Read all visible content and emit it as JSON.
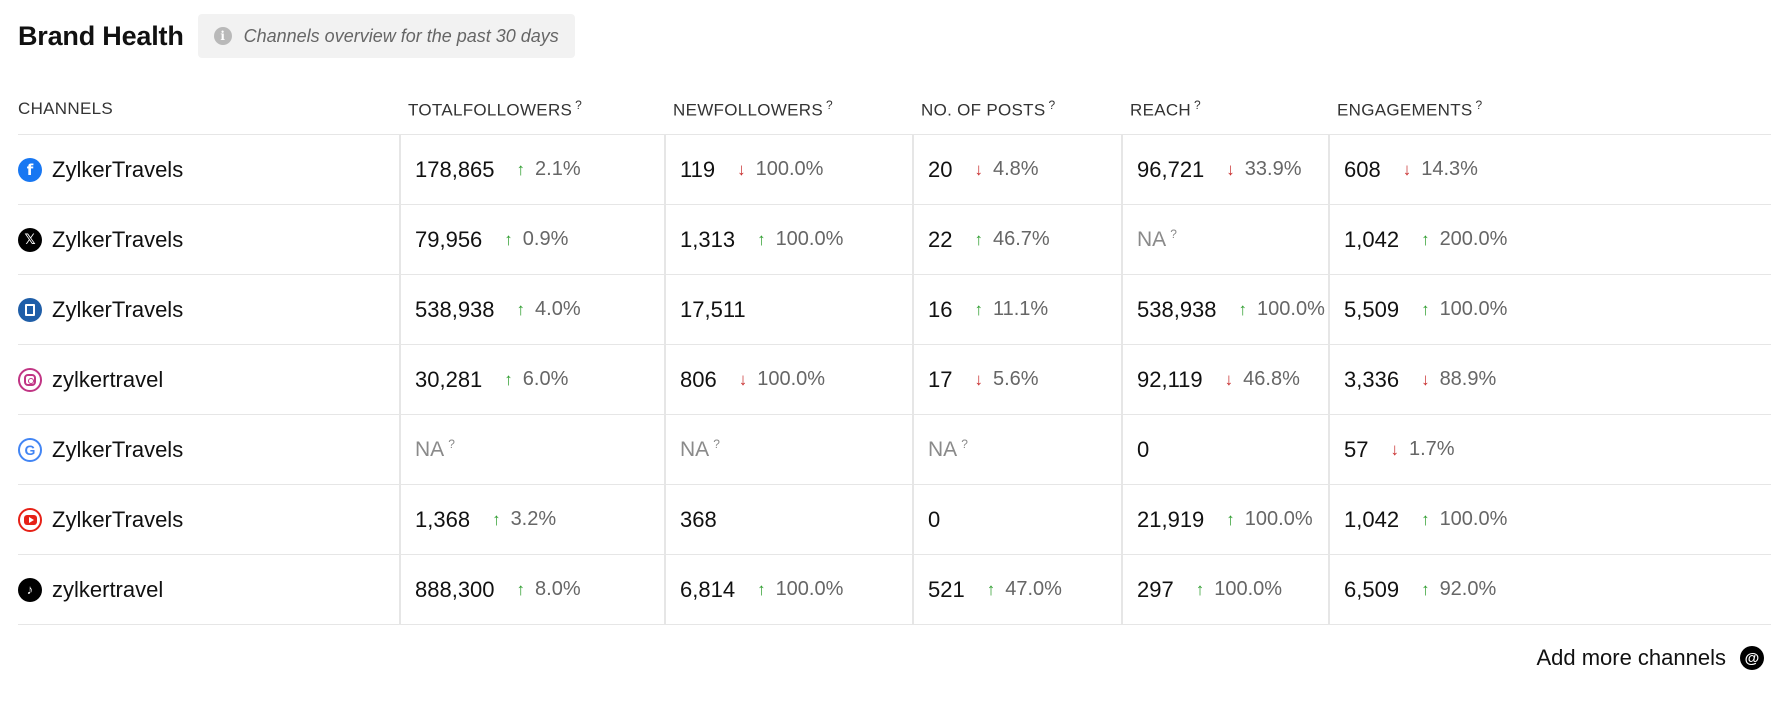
{
  "header": {
    "title": "Brand Health",
    "subtitle": "Channels overview for the past 30 days",
    "info_icon": "i"
  },
  "columns": [
    {
      "label": "CHANNELS",
      "help": ""
    },
    {
      "label": "TOTALFOLLOWERS",
      "help": "?"
    },
    {
      "label": "NEWFOLLOWERS",
      "help": "?"
    },
    {
      "label": "NO. OF POSTS",
      "help": "?"
    },
    {
      "label": "REACH",
      "help": "?"
    },
    {
      "label": "ENGAGEMENTS",
      "help": "?"
    }
  ],
  "rows": [
    {
      "icon": "facebook-icon",
      "glyph": "f",
      "name": "ZylkerTravels",
      "total": {
        "v": "178,865",
        "c": "2.1%",
        "d": "up"
      },
      "new": {
        "v": "119",
        "c": "100.0%",
        "d": "down"
      },
      "posts": {
        "v": "20",
        "c": "4.8%",
        "d": "down"
      },
      "reach": {
        "v": "96,721",
        "c": "33.9%",
        "d": "down"
      },
      "eng": {
        "v": "608",
        "c": "14.3%",
        "d": "down"
      }
    },
    {
      "icon": "x-twitter-icon",
      "glyph": "𝕏",
      "name": "ZylkerTravels",
      "total": {
        "v": "79,956",
        "c": "0.9%",
        "d": "up"
      },
      "new": {
        "v": "1,313",
        "c": "100.0%",
        "d": "up"
      },
      "posts": {
        "v": "22",
        "c": "46.7%",
        "d": "up"
      },
      "reach": {
        "na": "NA",
        "help": "?"
      },
      "eng": {
        "v": "1,042",
        "c": "200.0%",
        "d": "up"
      }
    },
    {
      "icon": "linkedin-page-icon",
      "glyph": "",
      "name": "ZylkerTravels",
      "total": {
        "v": "538,938",
        "c": "4.0%",
        "d": "up"
      },
      "new": {
        "v": "17,511"
      },
      "posts": {
        "v": "16",
        "c": "11.1%",
        "d": "up"
      },
      "reach": {
        "v": "538,938",
        "c": "100.0%",
        "d": "up"
      },
      "eng": {
        "v": "5,509",
        "c": "100.0%",
        "d": "up"
      }
    },
    {
      "icon": "instagram-icon",
      "glyph": "",
      "name": "zylkertravel",
      "total": {
        "v": "30,281",
        "c": "6.0%",
        "d": "up"
      },
      "new": {
        "v": "806",
        "c": "100.0%",
        "d": "down"
      },
      "posts": {
        "v": "17",
        "c": "5.6%",
        "d": "down"
      },
      "reach": {
        "v": "92,119",
        "c": "46.8%",
        "d": "down"
      },
      "eng": {
        "v": "3,336",
        "c": "88.9%",
        "d": "down"
      }
    },
    {
      "icon": "google-business-icon",
      "glyph": "G",
      "name": "ZylkerTravels",
      "total": {
        "na": "NA",
        "help": "?"
      },
      "new": {
        "na": "NA",
        "help": "?"
      },
      "posts": {
        "na": "NA",
        "help": "?"
      },
      "reach": {
        "v": "0"
      },
      "eng": {
        "v": "57",
        "c": "1.7%",
        "d": "down"
      }
    },
    {
      "icon": "youtube-icon",
      "glyph": "",
      "name": "ZylkerTravels",
      "total": {
        "v": "1,368",
        "c": "3.2%",
        "d": "up"
      },
      "new": {
        "v": "368"
      },
      "posts": {
        "v": "0"
      },
      "reach": {
        "v": "21,919",
        "c": "100.0%",
        "d": "up"
      },
      "eng": {
        "v": "1,042",
        "c": "100.0%",
        "d": "up"
      }
    },
    {
      "icon": "tiktok-icon",
      "glyph": "♪",
      "name": "zylkertravel",
      "total": {
        "v": "888,300",
        "c": "8.0%",
        "d": "up"
      },
      "new": {
        "v": "6,814",
        "c": "100.0%",
        "d": "up"
      },
      "posts": {
        "v": "521",
        "c": "47.0%",
        "d": "up"
      },
      "reach": {
        "v": "297",
        "c": "100.0%",
        "d": "up"
      },
      "eng": {
        "v": "6,509",
        "c": "92.0%",
        "d": "up"
      }
    }
  ],
  "footer": {
    "add_label": "Add more channels",
    "icon": "threads-icon",
    "icon_glyph": "@"
  },
  "colors": {
    "up": "#2f9e2f",
    "down": "#c93030"
  }
}
